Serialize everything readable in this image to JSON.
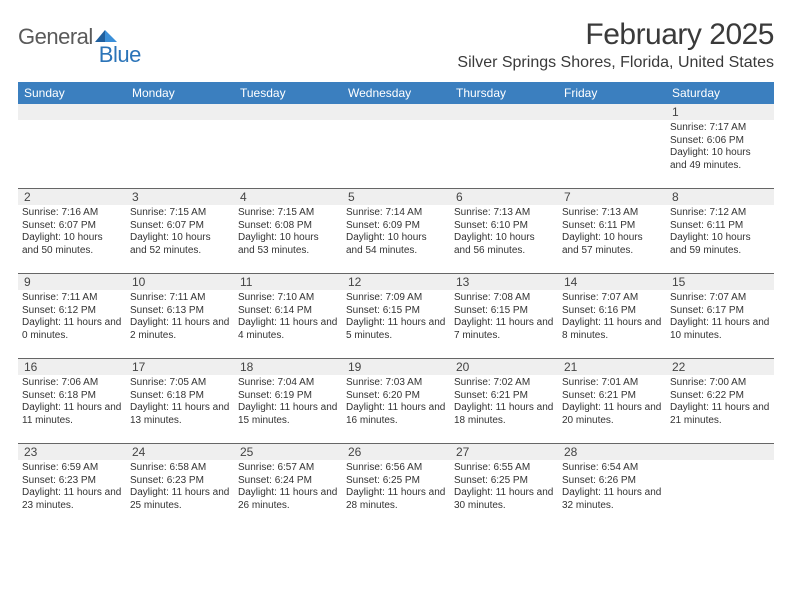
{
  "brand": {
    "word1": "General",
    "word2": "Blue",
    "text_color": "#5a5a5a",
    "accent_color": "#2b74b8"
  },
  "title": {
    "month_year": "February 2025",
    "location": "Silver Springs Shores, Florida, United States"
  },
  "colors": {
    "header_bg": "#3b7fbf",
    "header_text": "#ffffff",
    "band_bg": "#efefef",
    "divider": "#666666",
    "page_bg": "#ffffff",
    "body_text": "#333333"
  },
  "typography": {
    "title_fontsize_pt": 22,
    "location_fontsize_pt": 12,
    "header_fontsize_pt": 9,
    "daynum_fontsize_pt": 9,
    "detail_fontsize_pt": 7.5
  },
  "calendar": {
    "columns": 7,
    "day_headers": [
      "Sunday",
      "Monday",
      "Tuesday",
      "Wednesday",
      "Thursday",
      "Friday",
      "Saturday"
    ],
    "weeks": [
      [
        null,
        null,
        null,
        null,
        null,
        null,
        {
          "n": "1",
          "sr": "7:17 AM",
          "ss": "6:06 PM",
          "dl": "10 hours and 49 minutes."
        }
      ],
      [
        {
          "n": "2",
          "sr": "7:16 AM",
          "ss": "6:07 PM",
          "dl": "10 hours and 50 minutes."
        },
        {
          "n": "3",
          "sr": "7:15 AM",
          "ss": "6:07 PM",
          "dl": "10 hours and 52 minutes."
        },
        {
          "n": "4",
          "sr": "7:15 AM",
          "ss": "6:08 PM",
          "dl": "10 hours and 53 minutes."
        },
        {
          "n": "5",
          "sr": "7:14 AM",
          "ss": "6:09 PM",
          "dl": "10 hours and 54 minutes."
        },
        {
          "n": "6",
          "sr": "7:13 AM",
          "ss": "6:10 PM",
          "dl": "10 hours and 56 minutes."
        },
        {
          "n": "7",
          "sr": "7:13 AM",
          "ss": "6:11 PM",
          "dl": "10 hours and 57 minutes."
        },
        {
          "n": "8",
          "sr": "7:12 AM",
          "ss": "6:11 PM",
          "dl": "10 hours and 59 minutes."
        }
      ],
      [
        {
          "n": "9",
          "sr": "7:11 AM",
          "ss": "6:12 PM",
          "dl": "11 hours and 0 minutes."
        },
        {
          "n": "10",
          "sr": "7:11 AM",
          "ss": "6:13 PM",
          "dl": "11 hours and 2 minutes."
        },
        {
          "n": "11",
          "sr": "7:10 AM",
          "ss": "6:14 PM",
          "dl": "11 hours and 4 minutes."
        },
        {
          "n": "12",
          "sr": "7:09 AM",
          "ss": "6:15 PM",
          "dl": "11 hours and 5 minutes."
        },
        {
          "n": "13",
          "sr": "7:08 AM",
          "ss": "6:15 PM",
          "dl": "11 hours and 7 minutes."
        },
        {
          "n": "14",
          "sr": "7:07 AM",
          "ss": "6:16 PM",
          "dl": "11 hours and 8 minutes."
        },
        {
          "n": "15",
          "sr": "7:07 AM",
          "ss": "6:17 PM",
          "dl": "11 hours and 10 minutes."
        }
      ],
      [
        {
          "n": "16",
          "sr": "7:06 AM",
          "ss": "6:18 PM",
          "dl": "11 hours and 11 minutes."
        },
        {
          "n": "17",
          "sr": "7:05 AM",
          "ss": "6:18 PM",
          "dl": "11 hours and 13 minutes."
        },
        {
          "n": "18",
          "sr": "7:04 AM",
          "ss": "6:19 PM",
          "dl": "11 hours and 15 minutes."
        },
        {
          "n": "19",
          "sr": "7:03 AM",
          "ss": "6:20 PM",
          "dl": "11 hours and 16 minutes."
        },
        {
          "n": "20",
          "sr": "7:02 AM",
          "ss": "6:21 PM",
          "dl": "11 hours and 18 minutes."
        },
        {
          "n": "21",
          "sr": "7:01 AM",
          "ss": "6:21 PM",
          "dl": "11 hours and 20 minutes."
        },
        {
          "n": "22",
          "sr": "7:00 AM",
          "ss": "6:22 PM",
          "dl": "11 hours and 21 minutes."
        }
      ],
      [
        {
          "n": "23",
          "sr": "6:59 AM",
          "ss": "6:23 PM",
          "dl": "11 hours and 23 minutes."
        },
        {
          "n": "24",
          "sr": "6:58 AM",
          "ss": "6:23 PM",
          "dl": "11 hours and 25 minutes."
        },
        {
          "n": "25",
          "sr": "6:57 AM",
          "ss": "6:24 PM",
          "dl": "11 hours and 26 minutes."
        },
        {
          "n": "26",
          "sr": "6:56 AM",
          "ss": "6:25 PM",
          "dl": "11 hours and 28 minutes."
        },
        {
          "n": "27",
          "sr": "6:55 AM",
          "ss": "6:25 PM",
          "dl": "11 hours and 30 minutes."
        },
        {
          "n": "28",
          "sr": "6:54 AM",
          "ss": "6:26 PM",
          "dl": "11 hours and 32 minutes."
        },
        null
      ]
    ],
    "labels": {
      "sunrise_prefix": "Sunrise: ",
      "sunset_prefix": "Sunset: ",
      "daylight_prefix": "Daylight: "
    }
  }
}
